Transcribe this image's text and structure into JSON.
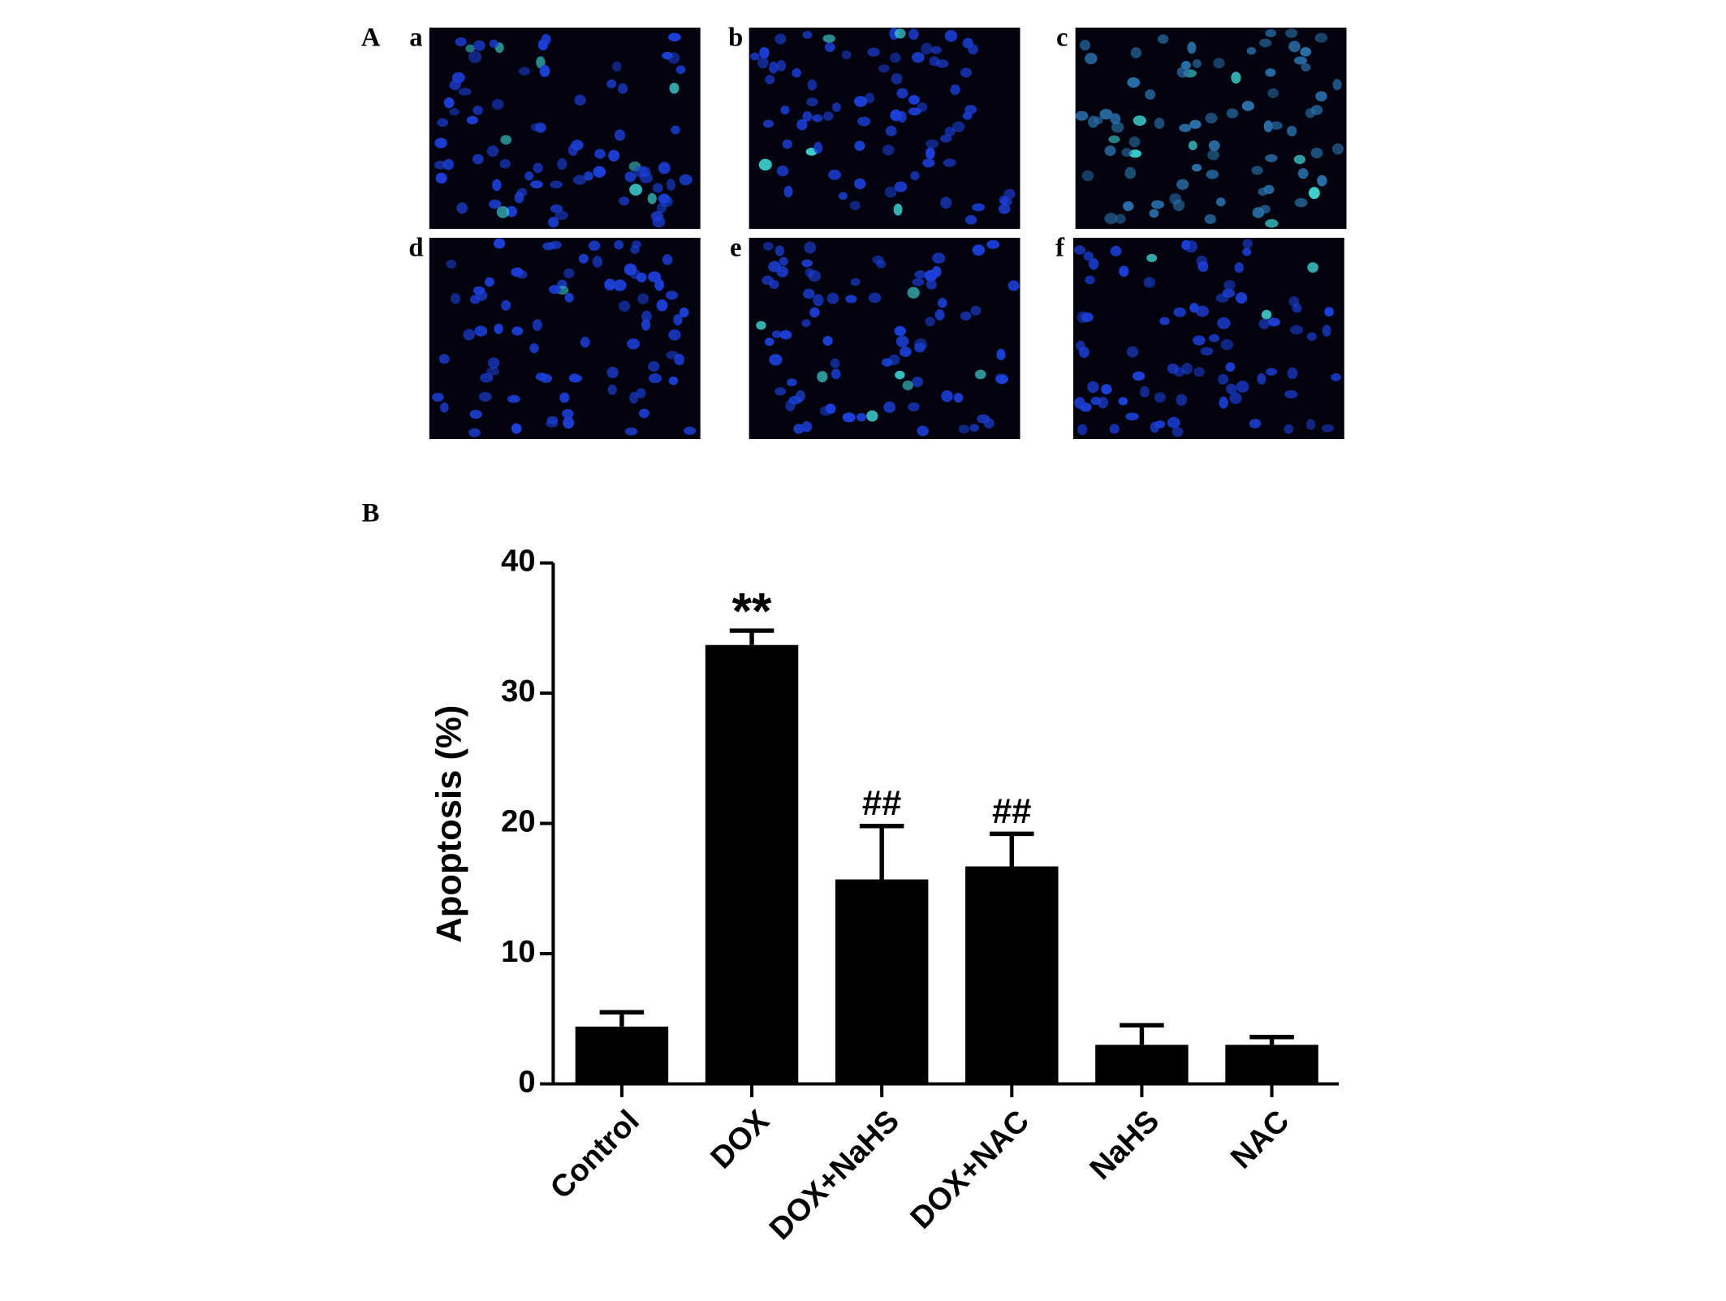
{
  "figure": {
    "panel_a_label": "A",
    "subpanel_labels": [
      "a",
      "b",
      "c",
      "d",
      "e",
      "f"
    ],
    "panel_b_label": "B"
  },
  "chart_data": {
    "type": "bar",
    "ylabel": "Apoptosis (%)",
    "categories": [
      "Control",
      "DOX",
      "DOX+NaHS",
      "DOX+NAC",
      "NaHS",
      "NAC"
    ],
    "values": [
      4.4,
      33.7,
      15.7,
      16.7,
      3.0,
      3.0
    ],
    "errors": [
      1.1,
      1.1,
      4.1,
      2.5,
      1.5,
      0.6
    ],
    "annotations": [
      null,
      "**",
      "##",
      "##",
      null,
      null
    ],
    "color": "#000000",
    "ylim": [
      0,
      40
    ],
    "yticks": [
      0,
      10,
      20,
      30,
      40
    ],
    "grid": false
  }
}
